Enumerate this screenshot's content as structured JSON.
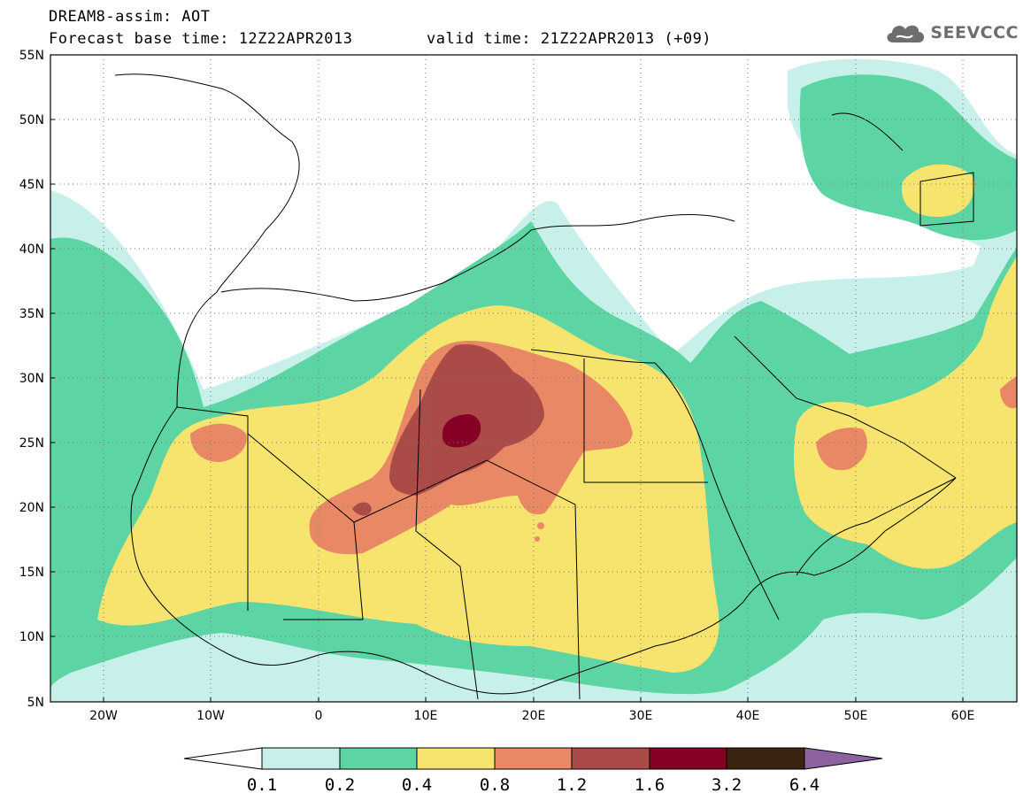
{
  "header": {
    "title_line1": "DREAM8-assim: AOT",
    "title_line2": "Forecast base time: 12Z22APR2013",
    "valid_time": "valid time: 21Z22APR2013 (+09)"
  },
  "logo": {
    "text": "SEEVCCC",
    "icon": "cloud-icon"
  },
  "map": {
    "lon_range": [
      -25,
      65
    ],
    "lat_range": [
      5,
      55
    ],
    "lat_labels": [
      "55N",
      "50N",
      "45N",
      "40N",
      "35N",
      "30N",
      "25N",
      "20N",
      "15N",
      "10N",
      "5N"
    ],
    "lon_labels": [
      "20W",
      "10W",
      "0",
      "10E",
      "20E",
      "30E",
      "40E",
      "50E",
      "60E"
    ],
    "gridlines": "dotted"
  },
  "colorbar": {
    "levels": [
      "0.1",
      "0.2",
      "0.4",
      "0.8",
      "1.2",
      "1.6",
      "3.2",
      "6.4"
    ],
    "colors": [
      "#ffffff",
      "#c6f0e9",
      "#5dd4a4",
      "#f6e46e",
      "#e88865",
      "#ab4b47",
      "#860025",
      "#3a2512",
      "#8c63a0"
    ]
  },
  "field_colors": {
    "c01": "#c6f0e9",
    "c02": "#5dd4a4",
    "c04": "#f6e46e",
    "c08": "#e88865",
    "c12": "#ab4b47",
    "c16": "#860025"
  }
}
